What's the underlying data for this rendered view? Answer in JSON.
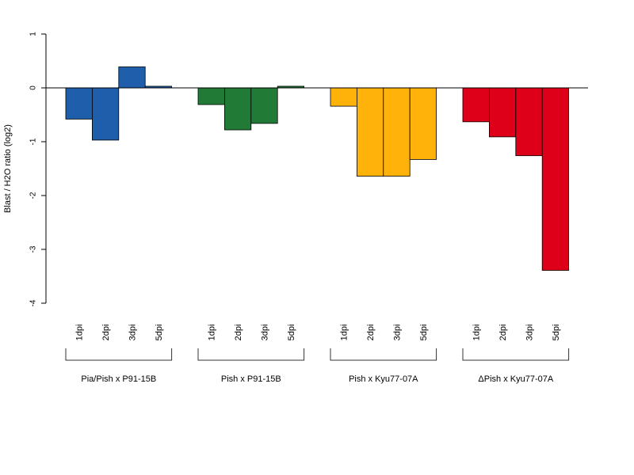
{
  "chart_data": {
    "type": "bar",
    "ylabel": "Blast / H2O ratio (log2)",
    "ylim": [
      -4,
      1
    ],
    "yticks": [
      1,
      0,
      -1,
      -2,
      -3,
      -4
    ],
    "grid": false,
    "legend": "none",
    "groups": [
      {
        "name": "Pia/Pish x P91-15B",
        "color": "#1f5eab",
        "categories": [
          "1dpi",
          "2dpi",
          "3dpi",
          "5dpi"
        ],
        "values": [
          -0.58,
          -0.97,
          0.39,
          0.03
        ]
      },
      {
        "name": "Pish x P91-15B",
        "color": "#217b36",
        "categories": [
          "1dpi",
          "2dpi",
          "3dpi",
          "5dpi"
        ],
        "values": [
          -0.31,
          -0.78,
          -0.66,
          0.03
        ]
      },
      {
        "name": "Pish x Kyu77-07A",
        "color": "#ffb30a",
        "categories": [
          "1dpi",
          "2dpi",
          "3dpi",
          "5dpi"
        ],
        "values": [
          -0.34,
          -1.64,
          -1.64,
          -1.33
        ]
      },
      {
        "name": "ΔPish x Kyu77-07A",
        "color": "#dd0018",
        "categories": [
          "1dpi",
          "2dpi",
          "3dpi",
          "5dpi"
        ],
        "values": [
          -0.63,
          -0.91,
          -1.26,
          -3.39
        ]
      }
    ]
  }
}
